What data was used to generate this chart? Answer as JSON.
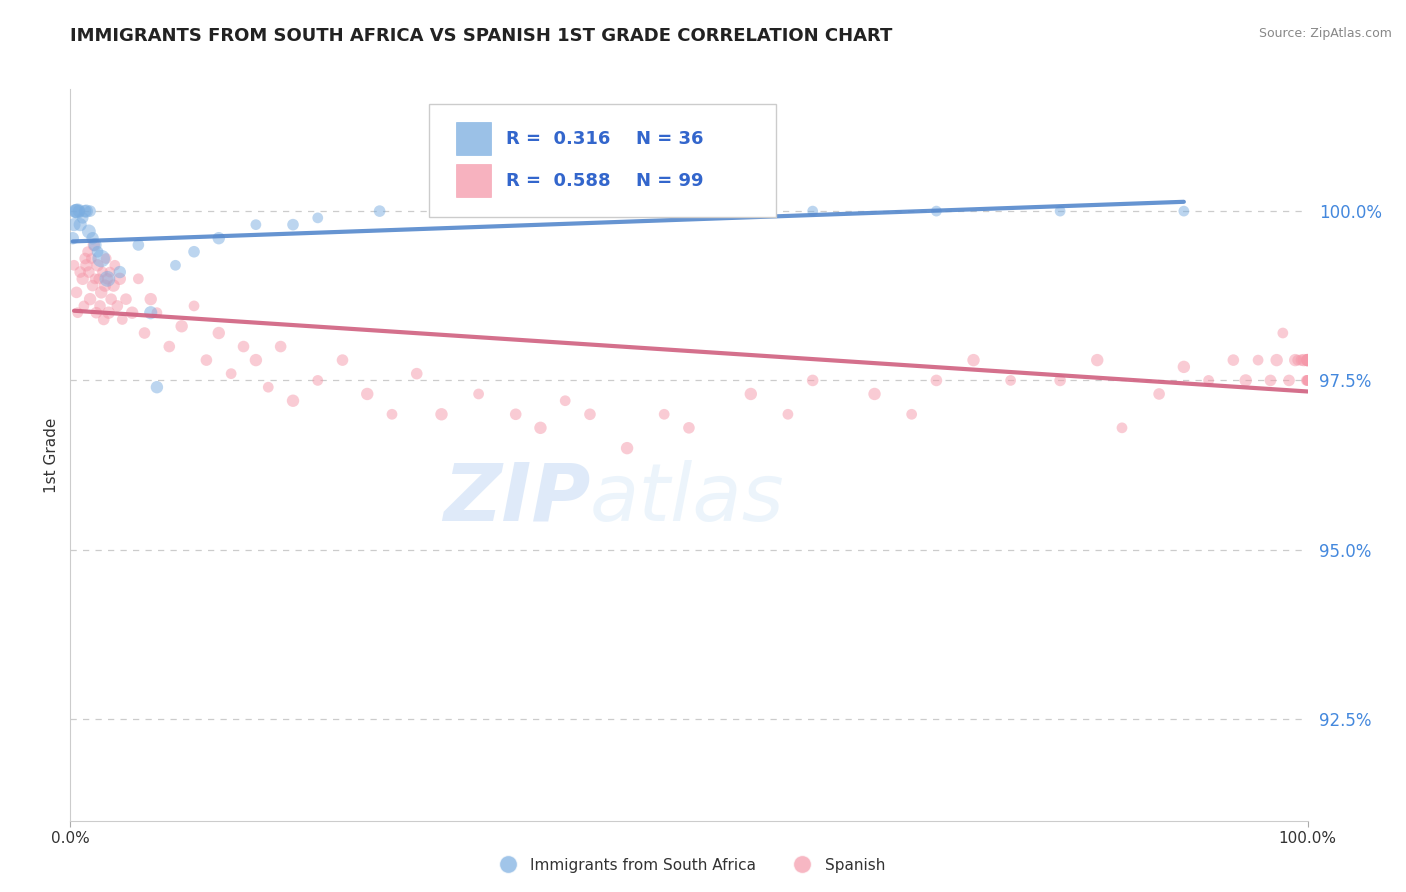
{
  "title": "IMMIGRANTS FROM SOUTH AFRICA VS SPANISH 1ST GRADE CORRELATION CHART",
  "source_text": "Source: ZipAtlas.com",
  "ylabel": "1st Grade",
  "watermark_zip": "ZIP",
  "watermark_atlas": "atlas",
  "y_ticks": [
    92.5,
    95.0,
    97.5,
    100.0
  ],
  "y_tick_labels": [
    "92.5%",
    "95.0%",
    "97.5%",
    "100.0%"
  ],
  "x_range": [
    0.0,
    100.0
  ],
  "y_range": [
    91.0,
    101.8
  ],
  "blue_R": 0.316,
  "blue_N": 36,
  "pink_R": 0.588,
  "pink_N": 99,
  "blue_color": "#7aade0",
  "pink_color": "#f599aa",
  "blue_label": "Immigrants from South Africa",
  "pink_label": "Spanish",
  "blue_points_x": [
    0.2,
    0.3,
    0.4,
    0.5,
    0.6,
    0.7,
    0.8,
    1.0,
    1.2,
    1.3,
    1.5,
    1.6,
    1.8,
    2.0,
    2.2,
    2.5,
    3.0,
    4.0,
    5.5,
    6.5,
    7.0,
    8.5,
    10.0,
    12.0,
    15.0,
    18.0,
    20.0,
    25.0,
    30.0,
    35.0,
    40.0,
    50.0,
    60.0,
    70.0,
    80.0,
    90.0
  ],
  "blue_points_y": [
    99.6,
    99.8,
    100.0,
    100.0,
    100.0,
    100.0,
    99.8,
    99.9,
    100.0,
    100.0,
    99.7,
    100.0,
    99.6,
    99.5,
    99.4,
    99.3,
    99.0,
    99.1,
    99.5,
    98.5,
    97.4,
    99.2,
    99.4,
    99.6,
    99.8,
    99.8,
    99.9,
    100.0,
    100.0,
    100.0,
    100.0,
    100.0,
    100.0,
    100.0,
    100.0,
    100.0
  ],
  "blue_sizes": [
    80,
    90,
    100,
    110,
    120,
    80,
    90,
    70,
    80,
    90,
    100,
    70,
    80,
    90,
    70,
    160,
    130,
    80,
    70,
    90,
    80,
    60,
    70,
    80,
    60,
    70,
    60,
    70,
    60,
    60,
    60,
    60,
    60,
    60,
    60,
    60
  ],
  "pink_points_x": [
    0.3,
    0.5,
    0.6,
    0.8,
    1.0,
    1.1,
    1.2,
    1.3,
    1.4,
    1.5,
    1.6,
    1.7,
    1.8,
    1.9,
    2.0,
    2.1,
    2.2,
    2.3,
    2.4,
    2.5,
    2.6,
    2.7,
    2.8,
    2.9,
    3.0,
    3.1,
    3.2,
    3.3,
    3.5,
    3.6,
    3.8,
    4.0,
    4.2,
    4.5,
    5.0,
    5.5,
    6.0,
    6.5,
    7.0,
    8.0,
    9.0,
    10.0,
    11.0,
    12.0,
    13.0,
    14.0,
    15.0,
    16.0,
    17.0,
    18.0,
    20.0,
    22.0,
    24.0,
    26.0,
    28.0,
    30.0,
    33.0,
    36.0,
    38.0,
    40.0,
    42.0,
    45.0,
    48.0,
    50.0,
    55.0,
    58.0,
    60.0,
    65.0,
    68.0,
    70.0,
    73.0,
    76.0,
    80.0,
    83.0,
    85.0,
    88.0,
    90.0,
    92.0,
    94.0,
    95.0,
    96.0,
    97.0,
    97.5,
    98.0,
    98.5,
    99.0,
    99.2,
    99.5,
    99.7,
    99.9,
    100.0,
    100.0,
    100.0,
    100.0,
    100.0,
    100.0,
    100.0,
    100.0,
    100.0
  ],
  "pink_points_y": [
    99.2,
    98.8,
    98.5,
    99.1,
    99.0,
    98.6,
    99.3,
    99.2,
    99.4,
    99.1,
    98.7,
    99.3,
    98.9,
    99.5,
    99.0,
    98.5,
    99.2,
    99.0,
    98.6,
    98.8,
    99.1,
    98.4,
    98.9,
    99.3,
    99.0,
    98.5,
    99.1,
    98.7,
    98.9,
    99.2,
    98.6,
    99.0,
    98.4,
    98.7,
    98.5,
    99.0,
    98.2,
    98.7,
    98.5,
    98.0,
    98.3,
    98.6,
    97.8,
    98.2,
    97.6,
    98.0,
    97.8,
    97.4,
    98.0,
    97.2,
    97.5,
    97.8,
    97.3,
    97.0,
    97.6,
    97.0,
    97.3,
    97.0,
    96.8,
    97.2,
    97.0,
    96.5,
    97.0,
    96.8,
    97.3,
    97.0,
    97.5,
    97.3,
    97.0,
    97.5,
    97.8,
    97.5,
    97.5,
    97.8,
    96.8,
    97.3,
    97.7,
    97.5,
    97.8,
    97.5,
    97.8,
    97.5,
    97.8,
    98.2,
    97.5,
    97.8,
    97.8,
    97.8,
    97.8,
    97.5,
    97.8,
    97.8,
    97.5,
    97.8,
    97.8,
    97.5,
    97.8,
    97.8,
    97.5
  ],
  "pink_sizes": [
    60,
    70,
    60,
    70,
    80,
    60,
    70,
    80,
    60,
    70,
    80,
    60,
    70,
    80,
    60,
    70,
    80,
    60,
    70,
    80,
    60,
    70,
    80,
    60,
    70,
    80,
    60,
    70,
    80,
    60,
    70,
    80,
    60,
    70,
    80,
    60,
    70,
    80,
    60,
    70,
    80,
    60,
    70,
    80,
    60,
    70,
    80,
    60,
    70,
    80,
    60,
    70,
    80,
    60,
    70,
    80,
    60,
    70,
    80,
    60,
    70,
    80,
    60,
    70,
    80,
    60,
    70,
    80,
    60,
    70,
    80,
    60,
    70,
    80,
    60,
    70,
    80,
    60,
    70,
    80,
    60,
    70,
    80,
    60,
    70,
    80,
    60,
    70,
    80,
    60,
    70,
    80,
    60,
    70,
    80,
    60,
    70,
    80,
    60
  ]
}
